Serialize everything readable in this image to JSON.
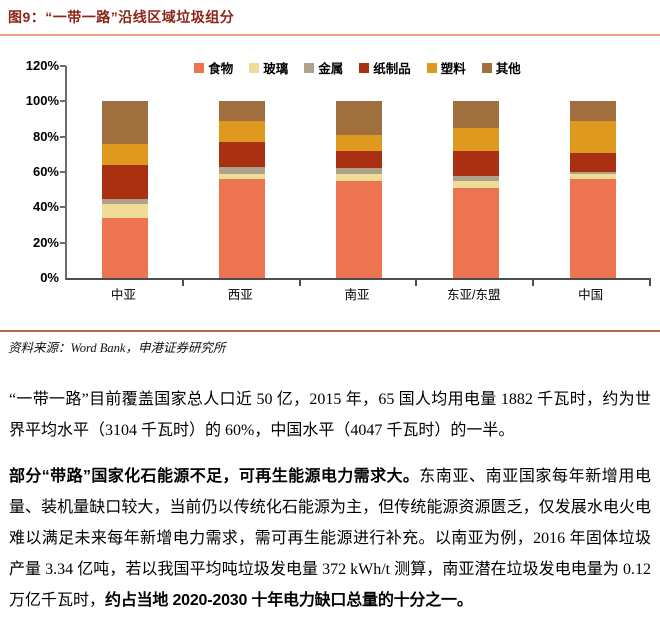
{
  "figure": {
    "title": "图9：“一带一路”沿线区域垃圾组分",
    "source_text": "资料来源：Word Bank，申港证券研究所"
  },
  "colors": {
    "title_text": "#8B2518",
    "title_rule": "#E9A189",
    "source_rule": "#AE6A4A",
    "axis": "#595959"
  },
  "chart_data": {
    "type": "bar",
    "stacked": true,
    "title": "“一带一路”沿线区域垃圾组分",
    "categories": [
      "中亚",
      "西亚",
      "南亚",
      "东亚/东盟",
      "中国"
    ],
    "series": [
      {
        "name": "食物",
        "color": "#ED7450",
        "values": [
          34,
          56,
          55,
          51,
          56
        ]
      },
      {
        "name": "玻璃",
        "color": "#EFDC96",
        "values": [
          8,
          3,
          4,
          4,
          3
        ]
      },
      {
        "name": "金属",
        "color": "#AFA28B",
        "values": [
          3,
          4,
          3,
          3,
          1
        ]
      },
      {
        "name": "纸制品",
        "color": "#A93010",
        "values": [
          19,
          14,
          10,
          14,
          11
        ]
      },
      {
        "name": "塑料",
        "color": "#E0991F",
        "values": [
          12,
          12,
          9,
          13,
          18
        ]
      },
      {
        "name": "其他",
        "color": "#A06F3E",
        "values": [
          24,
          11,
          19,
          15,
          11
        ]
      }
    ],
    "y_ticks": [
      "0%",
      "20%",
      "40%",
      "60%",
      "80%",
      "100%",
      "120%"
    ],
    "ylim": [
      0,
      120
    ],
    "unit": "%",
    "grid": false,
    "legend_position": "top"
  },
  "paragraphs": {
    "p1": "“一带一路”目前覆盖国家总人口近 50 亿，2015 年，65 国人均用电量 1882 千瓦时，约为世界平均水平（3104 千瓦时）的 60%，中国水平（4047 千瓦时）的一半。",
    "p2_bold_lead": "部分“带路”国家化石能源不足，可再生能源电力需求大。",
    "p2_body": "东南亚、南亚国家每年新增用电量、装机量缺口较大，当前仍以传统化石能源为主，但传统能源资源匮乏，仅发展水电火电难以满足未来每年新增电力需求，需可再生能源进行补充。以南亚为例，2016 年固体垃圾产量 3.34 亿吨，若以我国平均吨垃圾发电量 372 kWh/t 测算，南亚潜在垃圾发电电量为 0.12 万亿千瓦时，",
    "p2_bold_tail": "约占当地 2020-2030 十年电力缺口总量的十分之一。"
  }
}
